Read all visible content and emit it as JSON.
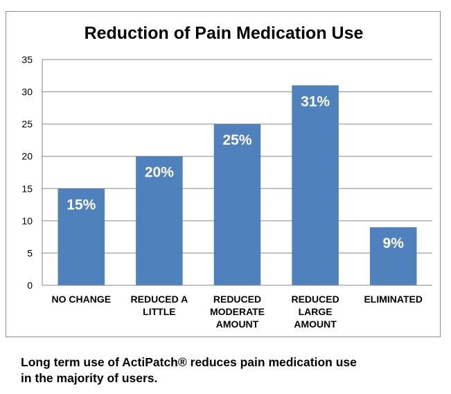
{
  "chart_data": {
    "type": "bar",
    "title": "Reduction of Pain Medication Use",
    "xlabel": "",
    "ylabel": "",
    "categories": [
      [
        "NO CHANGE"
      ],
      [
        "REDUCED A",
        "LITTLE"
      ],
      [
        "REDUCED",
        "MODERATE",
        "AMOUNT"
      ],
      [
        "REDUCED",
        "LARGE",
        "AMOUNT"
      ],
      [
        "ELIMINATED"
      ]
    ],
    "values": [
      15,
      20,
      25,
      31,
      9
    ],
    "data_labels": [
      "15%",
      "20%",
      "25%",
      "31%",
      "9%"
    ],
    "ylim": [
      0,
      35
    ],
    "yticks": [
      0,
      5,
      10,
      15,
      20,
      25,
      30,
      35
    ],
    "grid": true,
    "legend": "none",
    "bar_color": "#4f81bd",
    "grid_color": "#868686"
  },
  "caption": {
    "line1": "Long term use of ActiPatch® reduces pain medication use",
    "line2": "in the majority of users."
  }
}
